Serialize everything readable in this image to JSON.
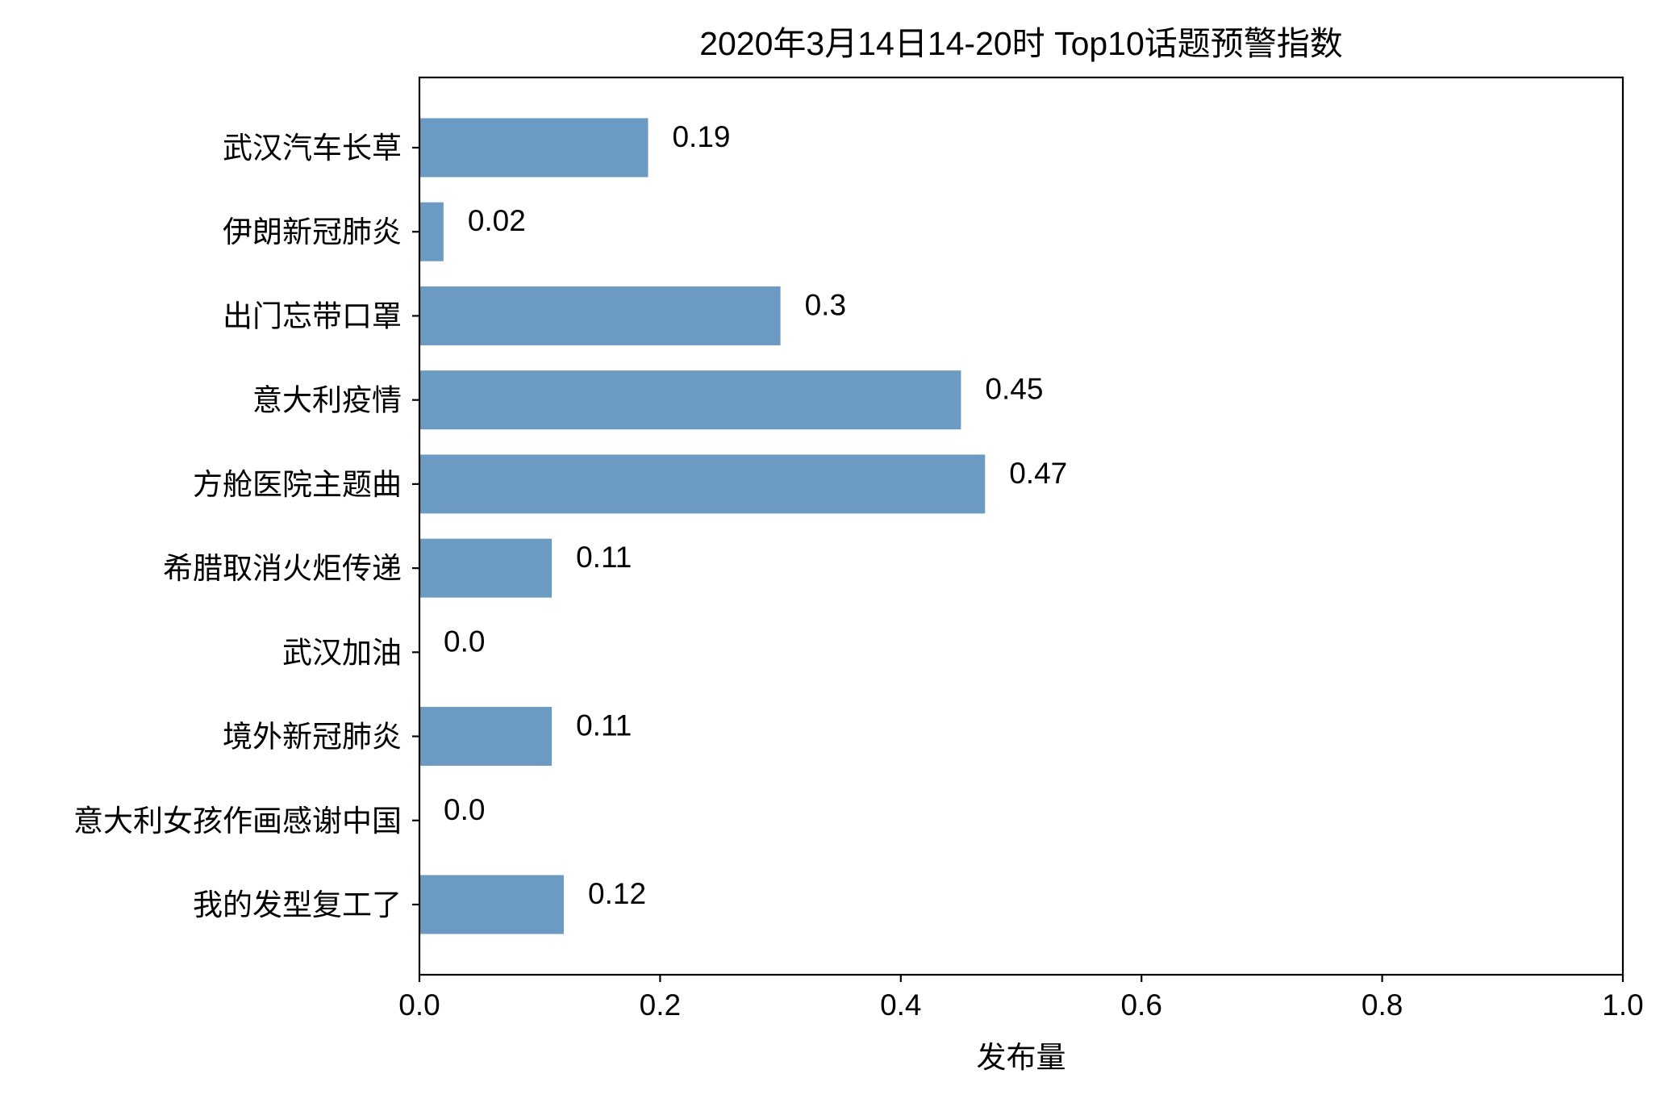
{
  "chart_data": {
    "type": "bar",
    "orientation": "horizontal",
    "title": "2020年3月14日14-20时 Top10话题预警指数",
    "xlabel": "发布量",
    "ylabel": "",
    "xlim": [
      0,
      1.0
    ],
    "xticks": [
      "0.0",
      "0.2",
      "0.4",
      "0.6",
      "0.8",
      "1.0"
    ],
    "xtick_values": [
      0,
      0.2,
      0.4,
      0.6,
      0.8,
      1.0
    ],
    "grid": false,
    "bar_color": "#6b9bc3",
    "categories": [
      "武汉汽车长草",
      "伊朗新冠肺炎",
      "出门忘带口罩",
      "意大利疫情",
      "方舱医院主题曲",
      "希腊取消火炬传递",
      "武汉加油",
      "境外新冠肺炎",
      "意大利女孩作画感谢中国",
      "我的发型复工了"
    ],
    "values": [
      0.19,
      0.02,
      0.3,
      0.45,
      0.47,
      0.11,
      0.0,
      0.11,
      0.0,
      0.12
    ],
    "value_labels": [
      "0.19",
      "0.02",
      "0.3",
      "0.45",
      "0.47",
      "0.11",
      "0.0",
      "0.11",
      "0.0",
      "0.12"
    ]
  }
}
